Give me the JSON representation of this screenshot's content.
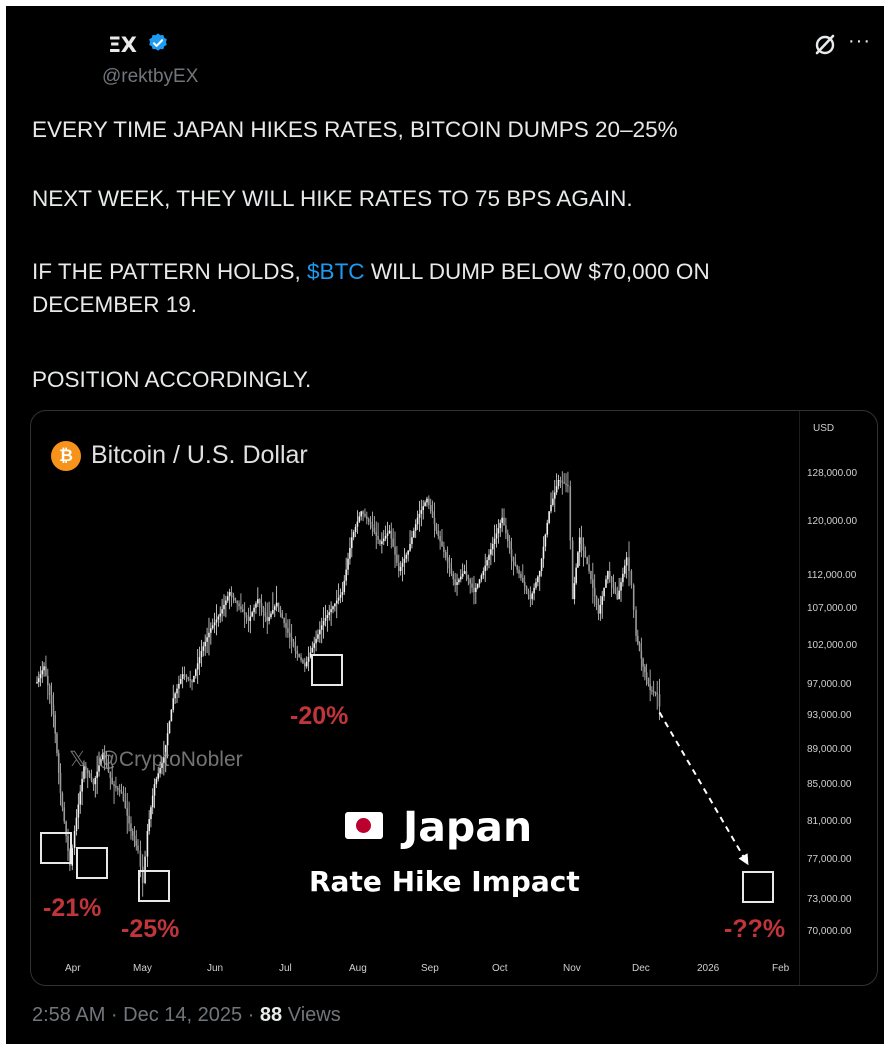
{
  "author": {
    "name": "ΞX",
    "handle": "@rektbyEX",
    "verified": true
  },
  "tweet": {
    "line1": "EVERY TIME JAPAN HIKES RATES, BITCOIN DUMPS 20–25%",
    "line2": "NEXT WEEK, THEY WILL HIKE RATES TO 75 BPS AGAIN.",
    "line3_pre": "IF THE PATTERN HOLDS, ",
    "line3_cashtag": "$BTC",
    "line3_post": " WILL DUMP BELOW $70,000 ON",
    "line4": "DECEMBER 19.",
    "line5": "POSITION ACCORDINGLY."
  },
  "icons": {
    "verified": "verified-badge-icon",
    "grok": "grok-icon",
    "more": "more-options-icon",
    "coin": "bitcoin-coin-icon",
    "flag": "japan-flag-icon"
  },
  "footer": {
    "time": "2:58 AM · Dec 14, 2025 · ",
    "views_count": "88",
    "views_label": " Views"
  },
  "colors": {
    "cashtag": "#1d9bf0",
    "drop_label": "#c0353b",
    "coin": "#f7931a"
  },
  "chart_data": {
    "type": "candlestick",
    "title": "Bitcoin / U.S. Dollar",
    "currency_label": "USD",
    "watermark": "@CryptoNobler",
    "overlay_title": "Japan",
    "overlay_subtitle": "Rate Hike Impact",
    "coin_symbol": "₿",
    "y_scale": "log",
    "ylim": [
      68500,
      136000
    ],
    "y_ticks": [
      "128,000.00",
      "120,000.00",
      "112,000.00",
      "107,000.00",
      "102,000.00",
      "97,000.00",
      "93,000.00",
      "89,000.00",
      "85,000.00",
      "81,000.00",
      "77,000.00",
      "73,000.00",
      "70,000.00"
    ],
    "x_ticks": [
      "Apr",
      "May",
      "Jun",
      "Jul",
      "Aug",
      "Sep",
      "Oct",
      "Nov",
      "Dec",
      "2026",
      "Feb"
    ],
    "price_path": [
      [
        "2025-03-24",
        97000
      ],
      [
        "2025-03-27",
        99000
      ],
      [
        "2025-03-31",
        93000
      ],
      [
        "2025-04-03",
        84000
      ],
      [
        "2025-04-07",
        76500
      ],
      [
        "2025-04-09",
        80000
      ],
      [
        "2025-04-13",
        87000
      ],
      [
        "2025-04-17",
        85000
      ],
      [
        "2025-04-21",
        88500
      ],
      [
        "2025-04-25",
        85000
      ],
      [
        "2025-04-29",
        84000
      ],
      [
        "2025-05-03",
        80000
      ],
      [
        "2025-05-06",
        78000
      ],
      [
        "2025-05-08",
        74800
      ],
      [
        "2025-05-10",
        80000
      ],
      [
        "2025-05-13",
        85000
      ],
      [
        "2025-05-17",
        88000
      ],
      [
        "2025-05-21",
        95000
      ],
      [
        "2025-05-25",
        98000
      ],
      [
        "2025-05-29",
        97000
      ],
      [
        "2025-06-02",
        101000
      ],
      [
        "2025-06-06",
        104000
      ],
      [
        "2025-06-10",
        106000
      ],
      [
        "2025-06-14",
        109000
      ],
      [
        "2025-06-18",
        107000
      ],
      [
        "2025-06-22",
        105000
      ],
      [
        "2025-06-26",
        108000
      ],
      [
        "2025-06-30",
        105000
      ],
      [
        "2025-07-04",
        107500
      ],
      [
        "2025-07-08",
        104000
      ],
      [
        "2025-07-12",
        101000
      ],
      [
        "2025-07-16",
        99000
      ],
      [
        "2025-07-20",
        102000
      ],
      [
        "2025-07-24",
        105000
      ],
      [
        "2025-07-28",
        107000
      ],
      [
        "2025-08-01",
        109000
      ],
      [
        "2025-08-05",
        117000
      ],
      [
        "2025-08-09",
        121000
      ],
      [
        "2025-08-13",
        119000
      ],
      [
        "2025-08-17",
        116000
      ],
      [
        "2025-08-21",
        118000
      ],
      [
        "2025-08-25",
        112000
      ],
      [
        "2025-08-29",
        115000
      ],
      [
        "2025-09-02",
        120000
      ],
      [
        "2025-09-06",
        123000
      ],
      [
        "2025-09-10",
        118000
      ],
      [
        "2025-09-14",
        114000
      ],
      [
        "2025-09-18",
        110000
      ],
      [
        "2025-09-22",
        112000
      ],
      [
        "2025-09-26",
        109000
      ],
      [
        "2025-09-30",
        112000
      ],
      [
        "2025-10-04",
        116000
      ],
      [
        "2025-10-08",
        120000
      ],
      [
        "2025-10-12",
        114000
      ],
      [
        "2025-10-16",
        111000
      ],
      [
        "2025-10-20",
        108000
      ],
      [
        "2025-10-24",
        112000
      ],
      [
        "2025-10-28",
        121000
      ],
      [
        "2025-11-01",
        126000
      ],
      [
        "2025-11-05",
        125000
      ],
      [
        "2025-11-07",
        108000
      ],
      [
        "2025-11-10",
        117000
      ],
      [
        "2025-11-14",
        112000
      ],
      [
        "2025-11-18",
        106000
      ],
      [
        "2025-11-22",
        112000
      ],
      [
        "2025-11-26",
        108000
      ],
      [
        "2025-11-30",
        114000
      ],
      [
        "2025-12-02",
        110000
      ],
      [
        "2025-12-04",
        103000
      ],
      [
        "2025-12-07",
        99000
      ],
      [
        "2025-12-10",
        96000
      ],
      [
        "2025-12-13",
        95500
      ],
      [
        "2025-12-14",
        94000
      ]
    ],
    "projection": {
      "from": [
        "2025-12-14",
        94000
      ],
      "to": [
        "2026-01-20",
        75500
      ]
    },
    "drawdowns": [
      {
        "label": "-21%",
        "date": "2025-03-31",
        "price": 78000
      },
      {
        "label": "-25%",
        "date": "2025-05-08",
        "price": 74000
      },
      {
        "label": "-20%",
        "date": "2025-07-16",
        "price": 98700
      },
      {
        "label": "-??%",
        "date": "2026-01-24",
        "price": 74200
      }
    ]
  }
}
